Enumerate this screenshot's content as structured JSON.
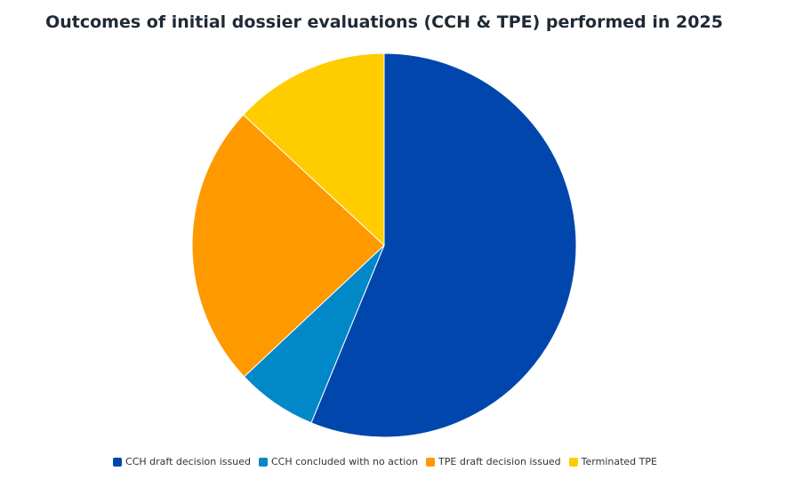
{
  "chart_data": {
    "type": "pie",
    "title": "Outcomes of initial dossier evaluations (CCH & TPE) performed in 2025",
    "slices": [
      {
        "label": "CCH draft decision issued",
        "value": 56.2,
        "color": "#0046ad"
      },
      {
        "label": "CCH concluded with no action",
        "value": 6.8,
        "color": "#0088c8"
      },
      {
        "label": "TPE draft decision issued",
        "value": 23.9,
        "color": "#ff9900"
      },
      {
        "label": "Terminated TPE",
        "value": 13.1,
        "color": "#ffcc00"
      }
    ],
    "start_direction": "top",
    "direction": "clockwise",
    "legend_position": "bottom",
    "data_labels": false
  }
}
